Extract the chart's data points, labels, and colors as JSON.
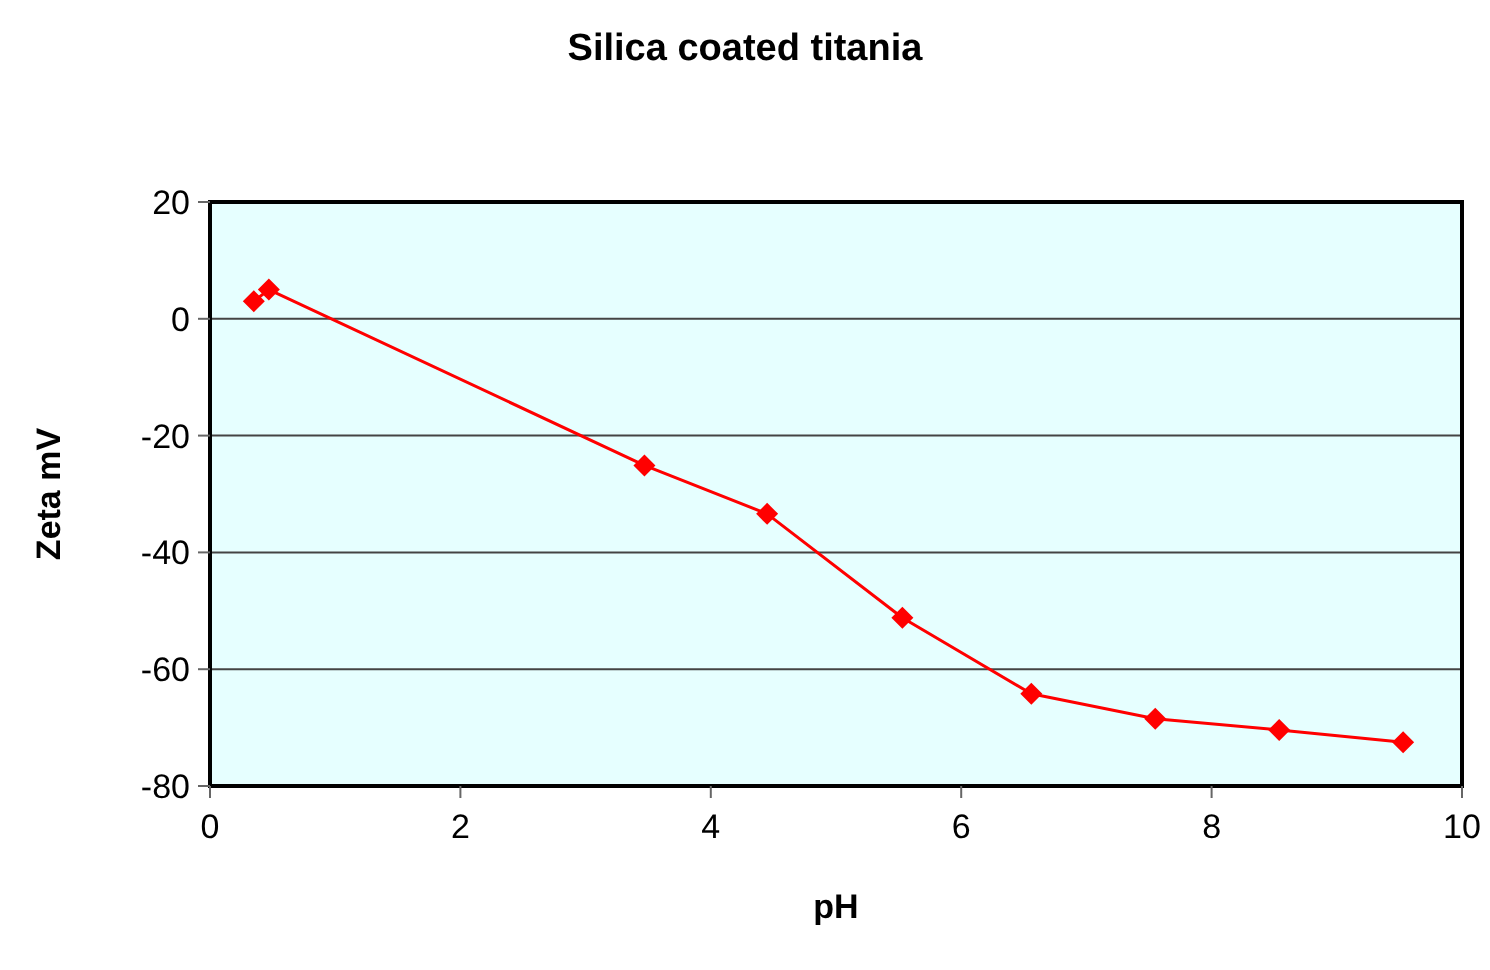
{
  "chart_data": {
    "type": "line",
    "title": "Silica coated titania",
    "xlabel": "pH",
    "ylabel": "Zeta mV",
    "x": [
      0.35,
      0.47,
      3.47,
      4.45,
      5.53,
      6.56,
      7.55,
      8.54,
      9.53
    ],
    "series": [
      {
        "color": "#ff0000",
        "values": [
          3,
          5,
          -25.1,
          -33.4,
          -51.2,
          -64.2,
          -68.5,
          -70.4,
          -72.5
        ]
      }
    ],
    "xlim": [
      0,
      10
    ],
    "xticks": [
      0,
      2,
      4,
      6,
      8,
      10
    ],
    "ylim": [
      -80,
      20
    ],
    "yticks": [
      -80,
      -60,
      -40,
      -20,
      0,
      20
    ],
    "grid": "y",
    "marker": "diamond"
  }
}
